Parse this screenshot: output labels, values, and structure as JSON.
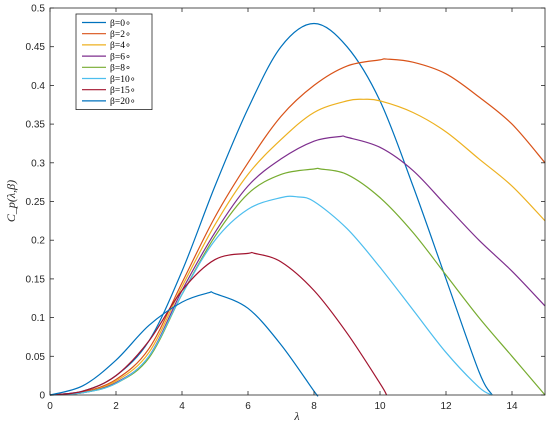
{
  "chart_data": {
    "type": "line",
    "xlabel": "λ",
    "ylabel": "C_p(λ,β)",
    "xlim": [
      0,
      15
    ],
    "ylim": [
      0,
      0.5
    ],
    "xticks": [
      "0",
      "2",
      "4",
      "6",
      "8",
      "10",
      "12",
      "14"
    ],
    "yticks": [
      "0",
      "0.05",
      "0.1",
      "0.15",
      "0.2",
      "0.25",
      "0.3",
      "0.35",
      "0.4",
      "0.45",
      "0.5"
    ],
    "grid": false,
    "legend_position": "top-left",
    "series": [
      {
        "name": "β=0∘",
        "color": "#0072BD",
        "x": [
          0,
          1,
          2,
          3,
          4,
          5,
          6,
          7,
          8,
          9,
          10,
          11,
          12,
          13,
          13.4
        ],
        "y": [
          0,
          0.005,
          0.025,
          0.07,
          0.16,
          0.27,
          0.37,
          0.45,
          0.48,
          0.45,
          0.38,
          0.27,
          0.15,
          0.03,
          0
        ]
      },
      {
        "name": "β=2∘",
        "color": "#D95319",
        "x": [
          0,
          1,
          2,
          3,
          4,
          5,
          6,
          7,
          8,
          9,
          10,
          10.2,
          11,
          12,
          13,
          14,
          15
        ],
        "y": [
          0,
          0.004,
          0.02,
          0.06,
          0.145,
          0.23,
          0.3,
          0.36,
          0.4,
          0.425,
          0.433,
          0.434,
          0.43,
          0.415,
          0.385,
          0.35,
          0.3
        ]
      },
      {
        "name": "β=4∘",
        "color": "#EDB120",
        "x": [
          0,
          1,
          2,
          3,
          4,
          5,
          6,
          7,
          8,
          9,
          9.5,
          10,
          11,
          12,
          13,
          14,
          15
        ],
        "y": [
          0,
          0.003,
          0.018,
          0.055,
          0.14,
          0.22,
          0.285,
          0.33,
          0.365,
          0.38,
          0.382,
          0.38,
          0.365,
          0.34,
          0.305,
          0.27,
          0.225
        ]
      },
      {
        "name": "β=6∘",
        "color": "#7E2F8E",
        "x": [
          0,
          1,
          2,
          3,
          4,
          5,
          6,
          7,
          8,
          8.8,
          9,
          10,
          11,
          12,
          13,
          14,
          15
        ],
        "y": [
          0,
          0.003,
          0.016,
          0.05,
          0.135,
          0.21,
          0.27,
          0.305,
          0.328,
          0.334,
          0.333,
          0.32,
          0.29,
          0.245,
          0.2,
          0.16,
          0.115
        ]
      },
      {
        "name": "β=8∘",
        "color": "#77AC30",
        "x": [
          0,
          1,
          2,
          3,
          4,
          5,
          6,
          7,
          8,
          8.2,
          9,
          10,
          11,
          12,
          13,
          14,
          15
        ],
        "y": [
          0,
          0.003,
          0.015,
          0.048,
          0.13,
          0.205,
          0.26,
          0.285,
          0.292,
          0.292,
          0.285,
          0.255,
          0.21,
          0.155,
          0.1,
          0.05,
          0
        ]
      },
      {
        "name": "β=10∘",
        "color": "#4DBEEE",
        "x": [
          0,
          1,
          2,
          3,
          4,
          5,
          6,
          7,
          7.5,
          8,
          9,
          10,
          11,
          12,
          13,
          13.4
        ],
        "y": [
          0,
          0.003,
          0.015,
          0.05,
          0.13,
          0.2,
          0.24,
          0.255,
          0.256,
          0.25,
          0.215,
          0.165,
          0.11,
          0.055,
          0.01,
          0
        ]
      },
      {
        "name": "β=15∘",
        "color": "#A2142F",
        "x": [
          0,
          1,
          2,
          3,
          4,
          5,
          6,
          6.2,
          7,
          8,
          9,
          10,
          10.2
        ],
        "y": [
          0,
          0.005,
          0.025,
          0.07,
          0.135,
          0.175,
          0.183,
          0.183,
          0.172,
          0.135,
          0.08,
          0.015,
          0
        ]
      },
      {
        "name": "β=20∘",
        "color": "#0072BD",
        "x": [
          0,
          1,
          2,
          3,
          4,
          4.8,
          5,
          6,
          7,
          8,
          8.1
        ],
        "y": [
          0,
          0.012,
          0.045,
          0.09,
          0.12,
          0.132,
          0.131,
          0.112,
          0.065,
          0.005,
          0
        ]
      }
    ]
  }
}
